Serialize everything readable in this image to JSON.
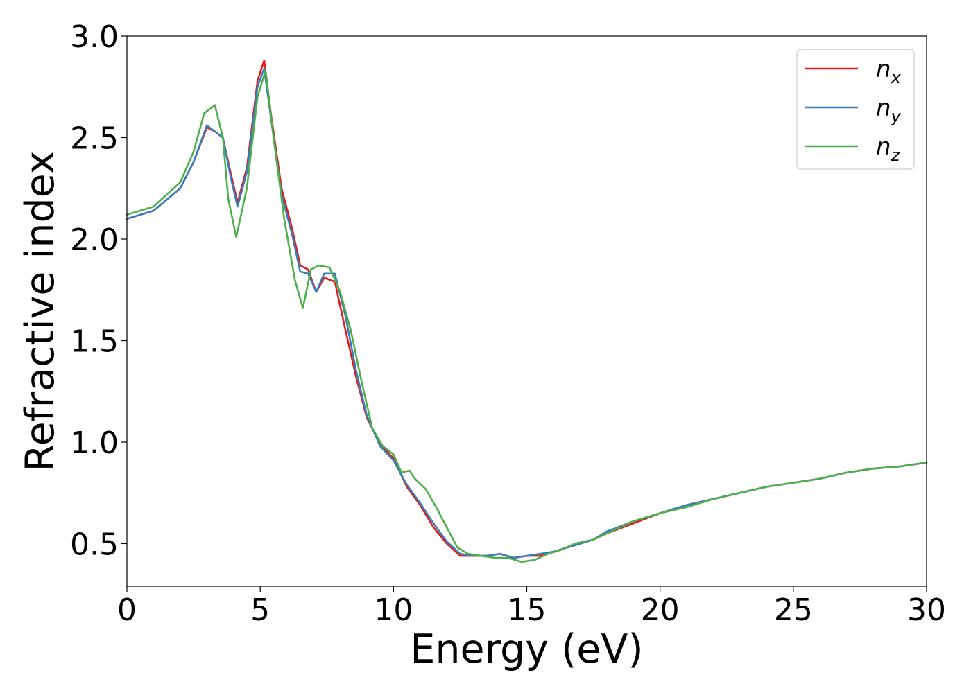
{
  "chart_data": {
    "type": "line",
    "title": "",
    "xlabel": "Energy (eV)",
    "ylabel": "Refractive index",
    "xlim": [
      0,
      30
    ],
    "ylim": [
      0.29,
      3.0
    ],
    "xticks": [
      "0",
      "5",
      "10",
      "15",
      "20",
      "25",
      "30"
    ],
    "yticks": [
      "0.5",
      "1.0",
      "1.5",
      "2.0",
      "2.5",
      "3.0"
    ],
    "grid": false,
    "legend_position": "top-right",
    "series": [
      {
        "name": "n_x",
        "label_base": "n",
        "label_sub": "x",
        "color": "#e41a1c",
        "x": [
          0,
          1,
          2,
          2.5,
          3.0,
          3.3,
          3.6,
          3.9,
          4.15,
          4.5,
          4.9,
          5.15,
          5.4,
          5.8,
          6.2,
          6.5,
          6.8,
          7.1,
          7.4,
          7.8,
          8.2,
          8.6,
          9.0,
          9.5,
          10.0,
          10.5,
          11.0,
          11.5,
          12.0,
          12.5,
          13.0,
          13.5,
          14.0,
          14.5,
          15.0,
          15.5,
          16.0,
          16.5,
          17.0,
          17.5,
          18.0,
          19.0,
          20.0,
          21.0,
          22.0,
          23.0,
          24.0,
          25.0,
          26.0,
          27.0,
          28.0,
          29.0,
          30.0
        ],
        "y": [
          2.1,
          2.14,
          2.25,
          2.38,
          2.55,
          2.53,
          2.5,
          2.32,
          2.18,
          2.35,
          2.78,
          2.88,
          2.62,
          2.25,
          2.05,
          1.87,
          1.85,
          1.74,
          1.81,
          1.79,
          1.55,
          1.32,
          1.12,
          0.99,
          0.92,
          0.78,
          0.69,
          0.58,
          0.5,
          0.44,
          0.44,
          0.44,
          0.45,
          0.43,
          0.44,
          0.44,
          0.46,
          0.48,
          0.5,
          0.52,
          0.55,
          0.6,
          0.65,
          0.69,
          0.72,
          0.75,
          0.78,
          0.8,
          0.82,
          0.85,
          0.87,
          0.88,
          0.9
        ]
      },
      {
        "name": "n_y",
        "label_base": "n",
        "label_sub": "y",
        "color": "#377eb8",
        "x": [
          0,
          1,
          2,
          2.5,
          3.0,
          3.3,
          3.6,
          3.9,
          4.15,
          4.5,
          4.9,
          5.15,
          5.4,
          5.8,
          6.2,
          6.5,
          6.8,
          7.1,
          7.4,
          7.8,
          8.2,
          8.6,
          9.0,
          9.5,
          10.0,
          10.5,
          11.0,
          11.5,
          12.0,
          12.5,
          13.0,
          13.5,
          14.0,
          14.5,
          15.0,
          15.5,
          16.0,
          16.5,
          17.0,
          17.5,
          18.0,
          19.0,
          20.0,
          21.0,
          22.0,
          23.0,
          24.0,
          25.0,
          26.0,
          27.0,
          28.0,
          29.0,
          30.0
        ],
        "y": [
          2.1,
          2.14,
          2.25,
          2.38,
          2.56,
          2.53,
          2.5,
          2.3,
          2.16,
          2.33,
          2.75,
          2.84,
          2.6,
          2.22,
          2.02,
          1.84,
          1.83,
          1.74,
          1.83,
          1.83,
          1.62,
          1.35,
          1.13,
          0.98,
          0.91,
          0.79,
          0.7,
          0.6,
          0.51,
          0.45,
          0.44,
          0.44,
          0.45,
          0.43,
          0.44,
          0.45,
          0.46,
          0.48,
          0.5,
          0.52,
          0.56,
          0.61,
          0.65,
          0.69,
          0.72,
          0.75,
          0.78,
          0.8,
          0.82,
          0.85,
          0.87,
          0.88,
          0.9
        ]
      },
      {
        "name": "n_z",
        "label_base": "n",
        "label_sub": "z",
        "color": "#4daf4a",
        "x": [
          0,
          1,
          2,
          2.5,
          2.9,
          3.3,
          3.6,
          3.8,
          4.1,
          4.5,
          4.9,
          5.2,
          5.5,
          5.9,
          6.3,
          6.6,
          6.9,
          7.2,
          7.6,
          8.0,
          8.4,
          8.8,
          9.2,
          9.6,
          10.0,
          10.3,
          10.6,
          10.8,
          11.2,
          11.6,
          12.0,
          12.4,
          12.8,
          13.3,
          13.8,
          14.3,
          14.8,
          15.3,
          15.8,
          16.3,
          16.8,
          17.5,
          18.0,
          19.0,
          20.0,
          21.0,
          22.0,
          23.0,
          24.0,
          25.0,
          26.0,
          27.0,
          28.0,
          29.0,
          30.0
        ],
        "y": [
          2.12,
          2.16,
          2.28,
          2.43,
          2.62,
          2.66,
          2.5,
          2.2,
          2.01,
          2.25,
          2.7,
          2.83,
          2.5,
          2.1,
          1.8,
          1.66,
          1.85,
          1.87,
          1.86,
          1.74,
          1.55,
          1.3,
          1.07,
          0.98,
          0.94,
          0.85,
          0.86,
          0.82,
          0.77,
          0.68,
          0.58,
          0.48,
          0.45,
          0.44,
          0.43,
          0.43,
          0.41,
          0.42,
          0.45,
          0.47,
          0.5,
          0.52,
          0.55,
          0.61,
          0.65,
          0.68,
          0.72,
          0.75,
          0.78,
          0.8,
          0.82,
          0.85,
          0.87,
          0.88,
          0.9
        ]
      }
    ]
  }
}
